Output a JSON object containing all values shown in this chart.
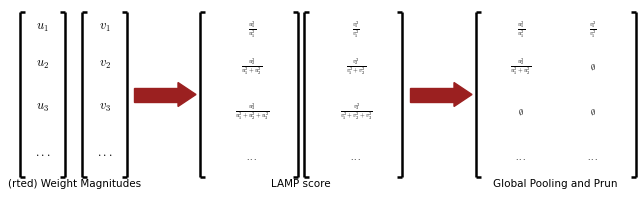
{
  "background_color": "#ffffff",
  "arrow_color": "#9b2020",
  "text_color": "#000000",
  "fig_width": 6.4,
  "fig_height": 1.97,
  "label1": "(rted) Weight Magnitudes",
  "label2": "LAMP score",
  "label3": "Global Pooling and Prun",
  "left_rows_u": [
    "$u_1$",
    "$u_2$",
    "$u_3$",
    "$...$"
  ],
  "left_rows_v": [
    "$v_1$",
    "$v_2$",
    "$v_3$",
    "$...$"
  ],
  "lamp_col1": [
    "$\\frac{u_1^2}{u_1^2}$",
    "$\\frac{u_2^2}{u_1^2+u_2^2}$",
    "$\\frac{u_3^2}{u_1^2+u_2^2+u_3^2}$",
    "$...$"
  ],
  "lamp_col2": [
    "$\\frac{v_1^2}{v_1^2}$",
    "$\\frac{v_2^2}{v_1^2+v_2^2}$",
    "$\\frac{v_3^2}{v_1^2+v_2^2+v_3^2}$",
    "$...$"
  ],
  "pool_col1": [
    "$\\frac{u_1^2}{u_1^2}$",
    "$\\frac{u_2^2}{u_1^2+u_2^2}$",
    "$\\emptyset$",
    "$...$"
  ],
  "pool_col2": [
    "$\\frac{v_1^2}{v_1^2}$",
    "$\\emptyset$",
    "$\\emptyset$",
    "$...$"
  ]
}
